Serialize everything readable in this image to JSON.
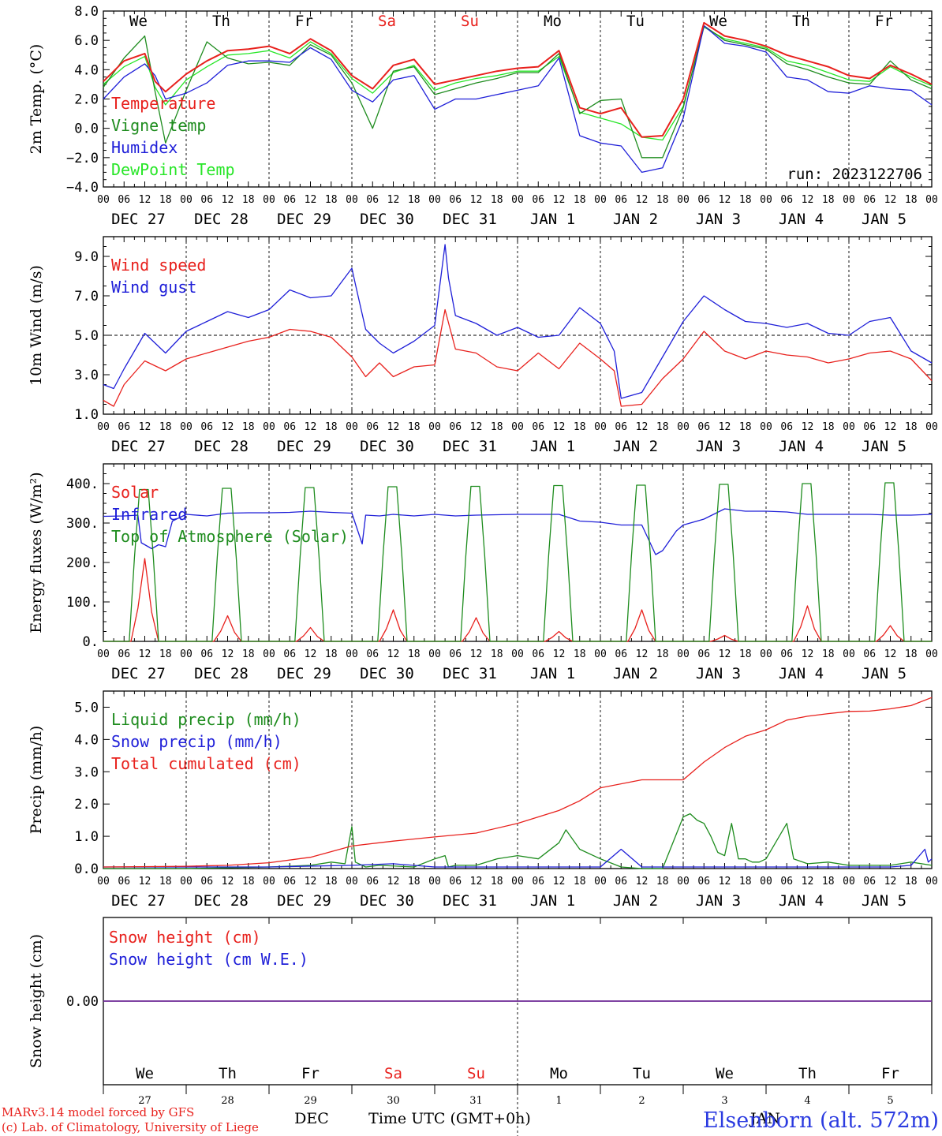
{
  "colors": {
    "red": "#e8211d",
    "green": "#1e8c1e",
    "blue": "#1f1fd8",
    "lightgreen": "#27e627",
    "purple": "#7a2a8a",
    "title": "#2b3be0",
    "grid": "#000000"
  },
  "days": {
    "weekdays": [
      "We",
      "Th",
      "Fr",
      "Sa",
      "Su",
      "Mo",
      "Tu",
      "We",
      "Th",
      "Fr"
    ],
    "weekend_indices": [
      3,
      4
    ],
    "date_labels": [
      "DEC 27",
      "DEC 28",
      "DEC 29",
      "DEC 30",
      "DEC 31",
      "JAN  1",
      "JAN  2",
      "JAN  3",
      "JAN  4",
      "JAN  5"
    ],
    "hour_ticks": [
      "00",
      "06",
      "12",
      "18"
    ],
    "day_numbers": [
      "27",
      "28",
      "29",
      "30",
      "31",
      "1",
      "2",
      "3",
      "4",
      "5"
    ],
    "month_labels": [
      "DEC",
      "JAN"
    ]
  },
  "footer": {
    "model_line1": "MARv3.14 model forced by GFS",
    "model_line2": "(c) Lab. of Climatology, University of Liege",
    "axis_title": "Time UTC (GMT+0h)",
    "station": "Elsenborn (alt. 572m)"
  },
  "chart_data": [
    {
      "type": "line",
      "ylabel": "2m Temp. (°C)",
      "ylim": [
        -4,
        8
      ],
      "yticks": [
        "8.0",
        "6.0",
        "4.0",
        "2.0",
        "0.0",
        "−2.0",
        "−4.0"
      ],
      "run_label": "run: 2023122706",
      "x_unit": "hours since Dec 27 00 UTC",
      "series": [
        {
          "name": "Temperature",
          "color": "red",
          "x": [
            0,
            6,
            12,
            15,
            18,
            24,
            30,
            36,
            42,
            48,
            54,
            60,
            66,
            72,
            78,
            84,
            90,
            96,
            102,
            108,
            114,
            120,
            126,
            132,
            138,
            144,
            150,
            156,
            162,
            168,
            174,
            180,
            186,
            192,
            198,
            204,
            210,
            216,
            222,
            228,
            234,
            240
          ],
          "y": [
            3.2,
            4.6,
            5.1,
            3.2,
            2.5,
            3.7,
            4.6,
            5.3,
            5.4,
            5.6,
            5.1,
            6.1,
            5.3,
            3.6,
            2.7,
            4.3,
            4.7,
            3.0,
            3.3,
            3.6,
            3.9,
            4.1,
            4.2,
            5.3,
            1.4,
            1.0,
            1.4,
            -0.6,
            -0.5,
            2.0,
            7.2,
            6.3,
            6.0,
            5.6,
            5.0,
            4.6,
            4.2,
            3.6,
            3.4,
            4.3,
            3.7,
            3.0
          ]
        },
        {
          "name": "Vigne temp",
          "color": "green",
          "x": [
            0,
            6,
            12,
            15,
            18,
            24,
            30,
            36,
            42,
            48,
            54,
            60,
            66,
            72,
            78,
            84,
            90,
            96,
            102,
            108,
            114,
            120,
            126,
            132,
            138,
            144,
            150,
            156,
            162,
            168,
            174,
            180,
            186,
            192,
            198,
            204,
            210,
            216,
            222,
            228,
            234,
            240
          ],
          "y": [
            2.8,
            4.8,
            6.3,
            2.5,
            -1.0,
            2.6,
            5.9,
            4.8,
            4.4,
            4.5,
            4.3,
            5.7,
            5.0,
            3.1,
            0.0,
            3.9,
            4.2,
            2.3,
            2.7,
            3.1,
            3.4,
            3.8,
            3.8,
            5.1,
            1.0,
            1.9,
            2.0,
            -2.0,
            -2.0,
            1.4,
            7.0,
            6.0,
            5.7,
            5.4,
            4.4,
            4.0,
            3.5,
            3.1,
            3.0,
            4.6,
            3.3,
            2.7
          ]
        },
        {
          "name": "Humidex",
          "color": "blue",
          "x": [
            0,
            6,
            12,
            15,
            18,
            24,
            30,
            36,
            42,
            48,
            54,
            60,
            66,
            72,
            78,
            84,
            90,
            96,
            102,
            108,
            114,
            120,
            126,
            132,
            138,
            144,
            150,
            156,
            162,
            168,
            174,
            180,
            186,
            192,
            198,
            204,
            210,
            216,
            222,
            228,
            234,
            240
          ],
          "y": [
            2.0,
            3.5,
            4.4,
            3.6,
            2.0,
            2.4,
            3.1,
            4.3,
            4.6,
            4.6,
            4.5,
            5.5,
            4.7,
            2.6,
            1.8,
            3.3,
            3.6,
            1.3,
            2.0,
            2.0,
            2.3,
            2.6,
            2.9,
            4.8,
            -0.5,
            -1.0,
            -1.2,
            -3.0,
            -2.7,
            0.7,
            7.0,
            5.8,
            5.6,
            5.2,
            3.5,
            3.3,
            2.5,
            2.4,
            2.9,
            2.7,
            2.6,
            1.6
          ]
        },
        {
          "name": "DewPoint Temp",
          "color": "lightgreen",
          "x": [
            0,
            6,
            12,
            15,
            18,
            24,
            30,
            36,
            42,
            48,
            54,
            60,
            66,
            72,
            78,
            84,
            90,
            96,
            102,
            108,
            114,
            120,
            126,
            132,
            138,
            144,
            150,
            156,
            162,
            168,
            174,
            180,
            186,
            192,
            198,
            204,
            210,
            216,
            222,
            228,
            234,
            240
          ],
          "y": [
            3.0,
            4.2,
            4.9,
            2.8,
            1.6,
            3.3,
            4.2,
            5.0,
            5.1,
            5.3,
            4.8,
            5.9,
            5.1,
            3.4,
            2.4,
            3.8,
            4.3,
            2.6,
            3.1,
            3.4,
            3.6,
            3.9,
            3.9,
            4.9,
            1.1,
            0.7,
            0.3,
            -0.6,
            -0.8,
            1.5,
            6.9,
            6.1,
            5.8,
            5.5,
            4.6,
            4.3,
            3.8,
            3.3,
            3.2,
            4.2,
            3.5,
            2.9
          ]
        }
      ]
    },
    {
      "type": "line",
      "ylabel": "10m Wind (m/s)",
      "ylim": [
        1,
        10
      ],
      "yticks": [
        "9.0",
        "7.0",
        "5.0",
        "3.0",
        "1.0"
      ],
      "dashed_y": 5.0,
      "series": [
        {
          "name": "Wind speed",
          "color": "red",
          "x": [
            0,
            3,
            6,
            12,
            18,
            24,
            30,
            36,
            42,
            48,
            54,
            60,
            66,
            72,
            76,
            80,
            84,
            90,
            96,
            99,
            102,
            108,
            114,
            120,
            126,
            132,
            138,
            144,
            148,
            150,
            156,
            162,
            168,
            174,
            180,
            186,
            192,
            198,
            204,
            210,
            216,
            222,
            228,
            234,
            240
          ],
          "y": [
            1.7,
            1.4,
            2.5,
            3.7,
            3.2,
            3.8,
            4.1,
            4.4,
            4.7,
            4.9,
            5.3,
            5.2,
            4.9,
            3.9,
            2.9,
            3.6,
            2.9,
            3.4,
            3.5,
            6.3,
            4.3,
            4.1,
            3.4,
            3.2,
            4.1,
            3.3,
            4.6,
            3.8,
            3.2,
            1.4,
            1.5,
            2.8,
            3.8,
            5.2,
            4.2,
            3.8,
            4.2,
            4.0,
            3.9,
            3.6,
            3.8,
            4.1,
            4.2,
            3.8,
            2.7
          ]
        },
        {
          "name": "Wind gust",
          "color": "blue",
          "x": [
            0,
            3,
            6,
            12,
            18,
            24,
            30,
            36,
            42,
            48,
            54,
            60,
            66,
            72,
            73,
            76,
            80,
            84,
            90,
            96,
            99,
            100,
            102,
            108,
            114,
            120,
            126,
            132,
            138,
            144,
            148,
            150,
            156,
            162,
            168,
            174,
            180,
            186,
            192,
            198,
            204,
            210,
            216,
            222,
            228,
            234,
            240
          ],
          "y": [
            2.5,
            2.3,
            3.3,
            5.1,
            4.1,
            5.2,
            5.7,
            6.2,
            5.9,
            6.3,
            7.3,
            6.9,
            7.0,
            8.4,
            7.6,
            5.3,
            4.6,
            4.1,
            4.7,
            5.5,
            9.6,
            7.9,
            6.0,
            5.6,
            5.0,
            5.4,
            4.9,
            5.0,
            6.4,
            5.6,
            4.2,
            1.8,
            2.1,
            3.9,
            5.7,
            7.0,
            6.3,
            5.7,
            5.6,
            5.4,
            5.6,
            5.1,
            5.0,
            5.7,
            5.9,
            4.2,
            3.6
          ]
        }
      ]
    },
    {
      "type": "line",
      "ylabel": "Energy fluxes (W/m²)",
      "ylim": [
        0,
        450
      ],
      "yticks": [
        "400.",
        "300.",
        "200.",
        "100.",
        "0."
      ],
      "series": [
        {
          "name": "Solar",
          "color": "red",
          "day_peaks": [
            210,
            65,
            35,
            80,
            60,
            25,
            80,
            15,
            90,
            40
          ]
        },
        {
          "name": "Infrared",
          "color": "blue",
          "x": [
            0,
            6,
            10,
            11,
            14,
            16,
            18,
            20,
            24,
            30,
            36,
            42,
            48,
            54,
            60,
            66,
            72,
            75,
            76,
            80,
            84,
            90,
            96,
            102,
            108,
            114,
            120,
            126,
            132,
            138,
            144,
            150,
            156,
            160,
            162,
            166,
            168,
            174,
            180,
            186,
            192,
            198,
            204,
            210,
            216,
            222,
            228,
            234,
            240
          ],
          "y": [
            317,
            318,
            320,
            250,
            235,
            245,
            240,
            305,
            322,
            318,
            325,
            326,
            326,
            327,
            330,
            327,
            325,
            247,
            320,
            318,
            322,
            318,
            322,
            318,
            320,
            321,
            322,
            322,
            322,
            305,
            302,
            295,
            295,
            220,
            230,
            280,
            295,
            310,
            336,
            330,
            330,
            328,
            322,
            322,
            322,
            322,
            320,
            320,
            322
          ]
        },
        {
          "name": "Top of Atmosphere (Solar)",
          "color": "green",
          "day_peaks": [
            385,
            388,
            390,
            392,
            393,
            395,
            396,
            398,
            400,
            402
          ]
        }
      ]
    },
    {
      "type": "line",
      "ylabel": "Precip (mm/h)",
      "ylim": [
        0,
        5.5
      ],
      "yticks": [
        "5.0",
        "4.0",
        "3.0",
        "2.0",
        "1.0",
        "0.0"
      ],
      "series": [
        {
          "name": "Liquid precip (mm/h)",
          "color": "green",
          "x": [
            0,
            24,
            48,
            60,
            66,
            70,
            72,
            73,
            76,
            80,
            90,
            96,
            99,
            100,
            102,
            108,
            114,
            120,
            126,
            132,
            134,
            138,
            144,
            150,
            156,
            162,
            168,
            170,
            172,
            174,
            176,
            178,
            180,
            182,
            184,
            186,
            188,
            190,
            192,
            198,
            200,
            204,
            210,
            216,
            222,
            228,
            234,
            240
          ],
          "y": [
            0,
            0,
            0.05,
            0.1,
            0.2,
            0.15,
            1.3,
            0.2,
            0.05,
            0.1,
            0.05,
            0.3,
            0.4,
            0.05,
            0.1,
            0.1,
            0.3,
            0.4,
            0.3,
            0.8,
            1.2,
            0.6,
            0.3,
            0.05,
            0,
            0,
            1.6,
            1.7,
            1.5,
            1.4,
            1.0,
            0.5,
            0.4,
            1.4,
            0.3,
            0.3,
            0.2,
            0.2,
            0.3,
            1.4,
            0.3,
            0.15,
            0.2,
            0.1,
            0.1,
            0.1,
            0.2,
            0.1
          ]
        },
        {
          "name": "Snow precip (mm/h)",
          "color": "blue",
          "x": [
            0,
            24,
            48,
            72,
            84,
            96,
            120,
            144,
            150,
            156,
            168,
            192,
            216,
            228,
            234,
            238,
            239,
            240
          ],
          "y": [
            0.05,
            0.05,
            0.05,
            0.1,
            0.15,
            0.05,
            0.05,
            0.05,
            0.6,
            0.05,
            0.05,
            0.05,
            0.05,
            0.05,
            0.1,
            0.6,
            0.2,
            0.3
          ]
        },
        {
          "name": "Total cumulated (cm)",
          "color": "red",
          "x": [
            0,
            24,
            36,
            48,
            60,
            72,
            84,
            96,
            108,
            120,
            132,
            138,
            144,
            156,
            168,
            174,
            180,
            186,
            192,
            198,
            204,
            210,
            216,
            222,
            228,
            234,
            240
          ],
          "y": [
            0.05,
            0.07,
            0.1,
            0.18,
            0.35,
            0.7,
            0.85,
            0.98,
            1.1,
            1.4,
            1.8,
            2.1,
            2.5,
            2.75,
            2.75,
            3.3,
            3.75,
            4.1,
            4.3,
            4.6,
            4.72,
            4.8,
            4.87,
            4.88,
            4.95,
            5.05,
            5.3
          ]
        }
      ]
    },
    {
      "type": "line",
      "ylabel": "Snow height (cm)",
      "yticks": [
        "0.00"
      ],
      "series": [
        {
          "name": "Snow height (cm)",
          "color": "red",
          "values": [
            0,
            0
          ]
        },
        {
          "name": "Snow height (cm W.E.)",
          "color": "blue",
          "values": [
            0,
            0
          ]
        }
      ]
    }
  ]
}
